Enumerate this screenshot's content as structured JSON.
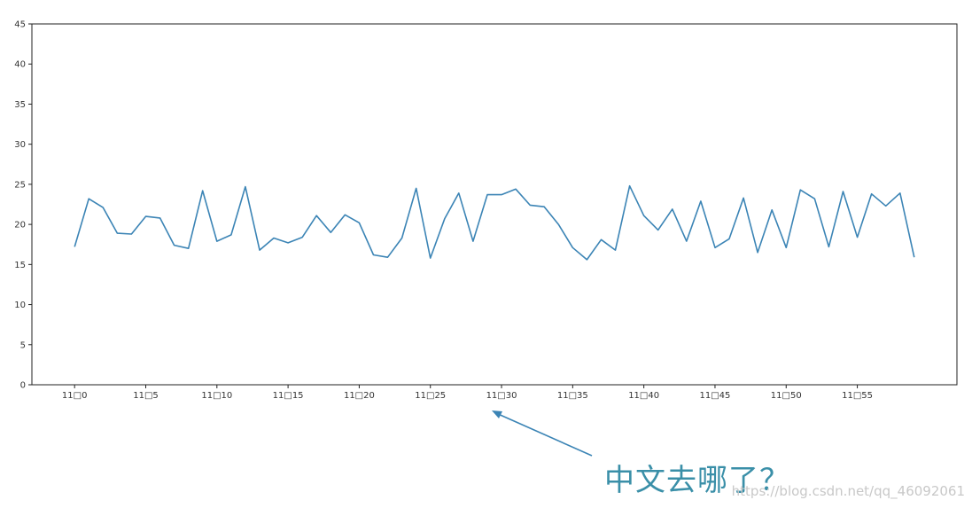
{
  "chart_data": {
    "type": "line",
    "title": "",
    "xlabel": "",
    "ylabel": "",
    "ylim": [
      0,
      45
    ],
    "yticks": [
      0,
      5,
      10,
      15,
      20,
      25,
      30,
      35,
      40,
      45
    ],
    "xlim": [
      -3,
      62
    ],
    "xtick_positions": [
      0,
      5,
      10,
      15,
      20,
      25,
      30,
      35,
      40,
      45,
      50,
      55
    ],
    "xtick_labels": [
      "11□0",
      "11□5",
      "11□10",
      "11□15",
      "11□20",
      "11□25",
      "11□30",
      "11□35",
      "11□40",
      "11□45",
      "11□50",
      "11□55"
    ],
    "grid": false,
    "legend": "none",
    "series": [
      {
        "color": "#3b84b5",
        "x": [
          0,
          1,
          2,
          3,
          4,
          5,
          6,
          7,
          8,
          9,
          10,
          11,
          12,
          13,
          14,
          15,
          16,
          17,
          18,
          19,
          20,
          21,
          22,
          23,
          24,
          25,
          26,
          27,
          28,
          29,
          30,
          31,
          32,
          33,
          34,
          35,
          36,
          37,
          38,
          39,
          40,
          41,
          42,
          43,
          44,
          45,
          46,
          47,
          48,
          49,
          50,
          51,
          52,
          53,
          54,
          55,
          56,
          57,
          58,
          59
        ],
        "values": [
          17.2,
          23.2,
          22.1,
          18.9,
          18.8,
          21.0,
          20.8,
          17.4,
          17.0,
          24.2,
          17.9,
          18.7,
          24.7,
          16.8,
          18.3,
          17.7,
          18.4,
          21.1,
          19.0,
          21.2,
          20.2,
          16.2,
          15.9,
          18.3,
          24.5,
          15.8,
          20.7,
          23.9,
          17.9,
          23.7,
          23.7,
          24.4,
          22.4,
          22.2,
          20.0,
          17.1,
          15.6,
          18.1,
          16.8,
          24.8,
          21.1,
          19.3,
          21.9,
          17.9,
          22.9,
          17.1,
          18.2,
          23.3,
          16.5,
          21.8,
          17.1,
          24.3,
          23.2,
          17.2,
          24.1,
          18.4,
          23.8,
          22.3,
          23.9,
          15.9
        ]
      }
    ]
  },
  "annotation": {
    "text": "中文去哪了？",
    "arrow_color": "#3b84b5",
    "text_color": "#3a8fa8"
  },
  "watermark": {
    "text": "https://blog.csdn.net/qq_46092061"
  }
}
